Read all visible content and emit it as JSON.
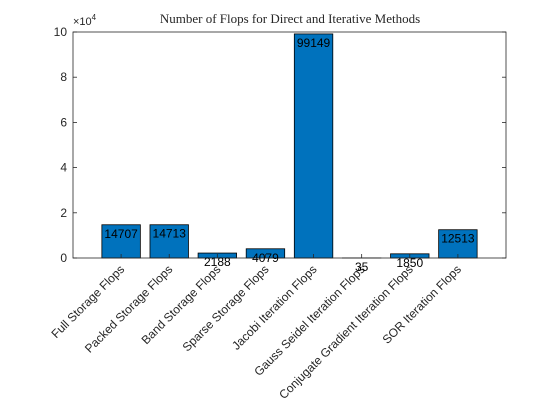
{
  "chart_data": {
    "type": "bar",
    "title": "Number of Flops for Direct and Iterative Methods",
    "categories": [
      "Full Storage Flops",
      "Packed Storage Flops",
      "Band Storage Flops",
      "Sparse Storage Flops",
      "Jacobi Iteration Flops",
      "Gauss Seidel Iteration Flops",
      "Conjugate Gradient Iteration Flops",
      "SOR Iteration Flops"
    ],
    "values": [
      14707,
      14713,
      2188,
      4079,
      99149,
      35,
      1850,
      12513
    ],
    "data_labels": [
      "14707",
      "14713",
      "2188",
      "4079",
      "99149",
      "35",
      "1850",
      "12513"
    ],
    "ylim": [
      0,
      100000
    ],
    "yticks": [
      0,
      2,
      4,
      6,
      8,
      10
    ],
    "y_exponent_label": "×10",
    "y_exponent_power": "4",
    "xlabel": "",
    "ylabel": "",
    "grid": false,
    "bar_color": "#0072BD"
  }
}
